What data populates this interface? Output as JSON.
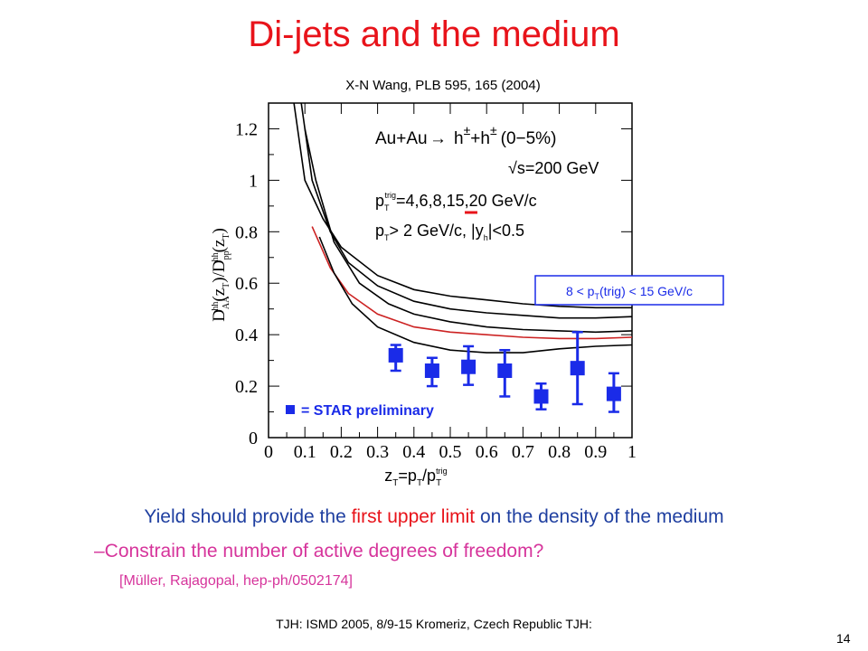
{
  "slide": {
    "title": "Di-jets and the medium",
    "citation": "X-N Wang, PLB 595, 165 (2004)",
    "bullet_main": {
      "part1": "Yield should provide the ",
      "highlight": "first upper limit",
      "part2": " on the density of the medium"
    },
    "bullet_sub": "–Constrain the number of active degrees of freedom?",
    "bullet_ref": "[Müller, Rajagopal, hep-ph/0502174]",
    "footer": "TJH: ISMD 2005, 8/9-15 Kromeriz, Czech Republic TJH:",
    "page_number": "14"
  },
  "colors": {
    "title": "#e8131a",
    "bullet_main": "#1f3fa0",
    "bullet_sub": "#d6349b",
    "data_points": "#1a2be8",
    "highlight_curve": "#cc2222"
  },
  "chart_data": {
    "type": "line",
    "ylabel": "D^hh_AA(z_T)/D^hh_pp(z_T)",
    "xlabel": "z_T=p_T/p_T^trig",
    "xlim": [
      0,
      1
    ],
    "ylim": [
      0,
      1.3
    ],
    "x_ticks": [
      "0",
      "0.1",
      "0.2",
      "0.3",
      "0.4",
      "0.5",
      "0.6",
      "0.7",
      "0.8",
      "0.9",
      "1"
    ],
    "y_ticks": [
      "0",
      "0.2",
      "0.4",
      "0.6",
      "0.8",
      "1",
      "1.2"
    ],
    "annotations": {
      "reaction_prefix": "Au+Au",
      "reaction_products": "h",
      "reaction_plus": "+h",
      "reaction_pm": "±",
      "centrality": "(0−5%)",
      "energy": "√s=200 GeV",
      "ptrig_label": "p",
      "ptrig_sub": "T",
      "ptrig_sup": "trig",
      "ptrig_values": "=4,6,8,15,20 GeV/c",
      "cuts": "p",
      "cuts_sub": "T",
      "cuts_rest": "> 2 GeV/c, |y",
      "cuts_h": "h",
      "cuts_end": "|<0.5"
    },
    "trigger_box": {
      "pre": "8 < p",
      "sub": "T",
      "post": "(trig) < 15 GeV/c"
    },
    "legend": "= STAR preliminary",
    "series": [
      {
        "values": [
          [
            0.07,
            1.3
          ],
          [
            0.1,
            1.0
          ],
          [
            0.15,
            0.85
          ],
          [
            0.2,
            0.74
          ],
          [
            0.3,
            0.63
          ],
          [
            0.4,
            0.575
          ],
          [
            0.5,
            0.55
          ],
          [
            0.6,
            0.535
          ],
          [
            0.7,
            0.52
          ],
          [
            0.8,
            0.51
          ],
          [
            0.9,
            0.505
          ],
          [
            1.0,
            0.505
          ]
        ],
        "highlight": false
      },
      {
        "values": [
          [
            0.09,
            1.3
          ],
          [
            0.12,
            1.0
          ],
          [
            0.17,
            0.8
          ],
          [
            0.22,
            0.68
          ],
          [
            0.3,
            0.59
          ],
          [
            0.4,
            0.53
          ],
          [
            0.5,
            0.5
          ],
          [
            0.6,
            0.485
          ],
          [
            0.7,
            0.475
          ],
          [
            0.8,
            0.465
          ],
          [
            0.9,
            0.465
          ],
          [
            1.0,
            0.47
          ]
        ],
        "highlight": false
      },
      {
        "values": [
          [
            0.1,
            1.2
          ],
          [
            0.13,
            1.0
          ],
          [
            0.18,
            0.76
          ],
          [
            0.25,
            0.6
          ],
          [
            0.33,
            0.52
          ],
          [
            0.4,
            0.48
          ],
          [
            0.5,
            0.45
          ],
          [
            0.6,
            0.43
          ],
          [
            0.7,
            0.42
          ],
          [
            0.8,
            0.415
          ],
          [
            0.9,
            0.41
          ],
          [
            1.0,
            0.415
          ]
        ],
        "highlight": false
      },
      {
        "values": [
          [
            0.12,
            0.82
          ],
          [
            0.17,
            0.66
          ],
          [
            0.22,
            0.56
          ],
          [
            0.3,
            0.48
          ],
          [
            0.4,
            0.43
          ],
          [
            0.5,
            0.41
          ],
          [
            0.6,
            0.4
          ],
          [
            0.7,
            0.39
          ],
          [
            0.8,
            0.385
          ],
          [
            0.9,
            0.385
          ],
          [
            1.0,
            0.39
          ]
        ],
        "highlight": true
      },
      {
        "values": [
          [
            0.14,
            0.78
          ],
          [
            0.18,
            0.64
          ],
          [
            0.23,
            0.52
          ],
          [
            0.3,
            0.43
          ],
          [
            0.4,
            0.37
          ],
          [
            0.5,
            0.34
          ],
          [
            0.6,
            0.33
          ],
          [
            0.7,
            0.33
          ],
          [
            0.8,
            0.345
          ],
          [
            0.9,
            0.355
          ],
          [
            1.0,
            0.36
          ]
        ],
        "highlight": false
      }
    ],
    "points": [
      {
        "x": 0.35,
        "y": 0.32,
        "err_lo": 0.06,
        "err_hi": 0.04
      },
      {
        "x": 0.45,
        "y": 0.26,
        "err_lo": 0.06,
        "err_hi": 0.05
      },
      {
        "x": 0.55,
        "y": 0.275,
        "err_lo": 0.07,
        "err_hi": 0.08
      },
      {
        "x": 0.65,
        "y": 0.26,
        "err_lo": 0.1,
        "err_hi": 0.08
      },
      {
        "x": 0.75,
        "y": 0.16,
        "err_lo": 0.05,
        "err_hi": 0.05
      },
      {
        "x": 0.85,
        "y": 0.27,
        "err_lo": 0.14,
        "err_hi": 0.14
      },
      {
        "x": 0.95,
        "y": 0.17,
        "err_lo": 0.07,
        "err_hi": 0.08
      }
    ]
  }
}
